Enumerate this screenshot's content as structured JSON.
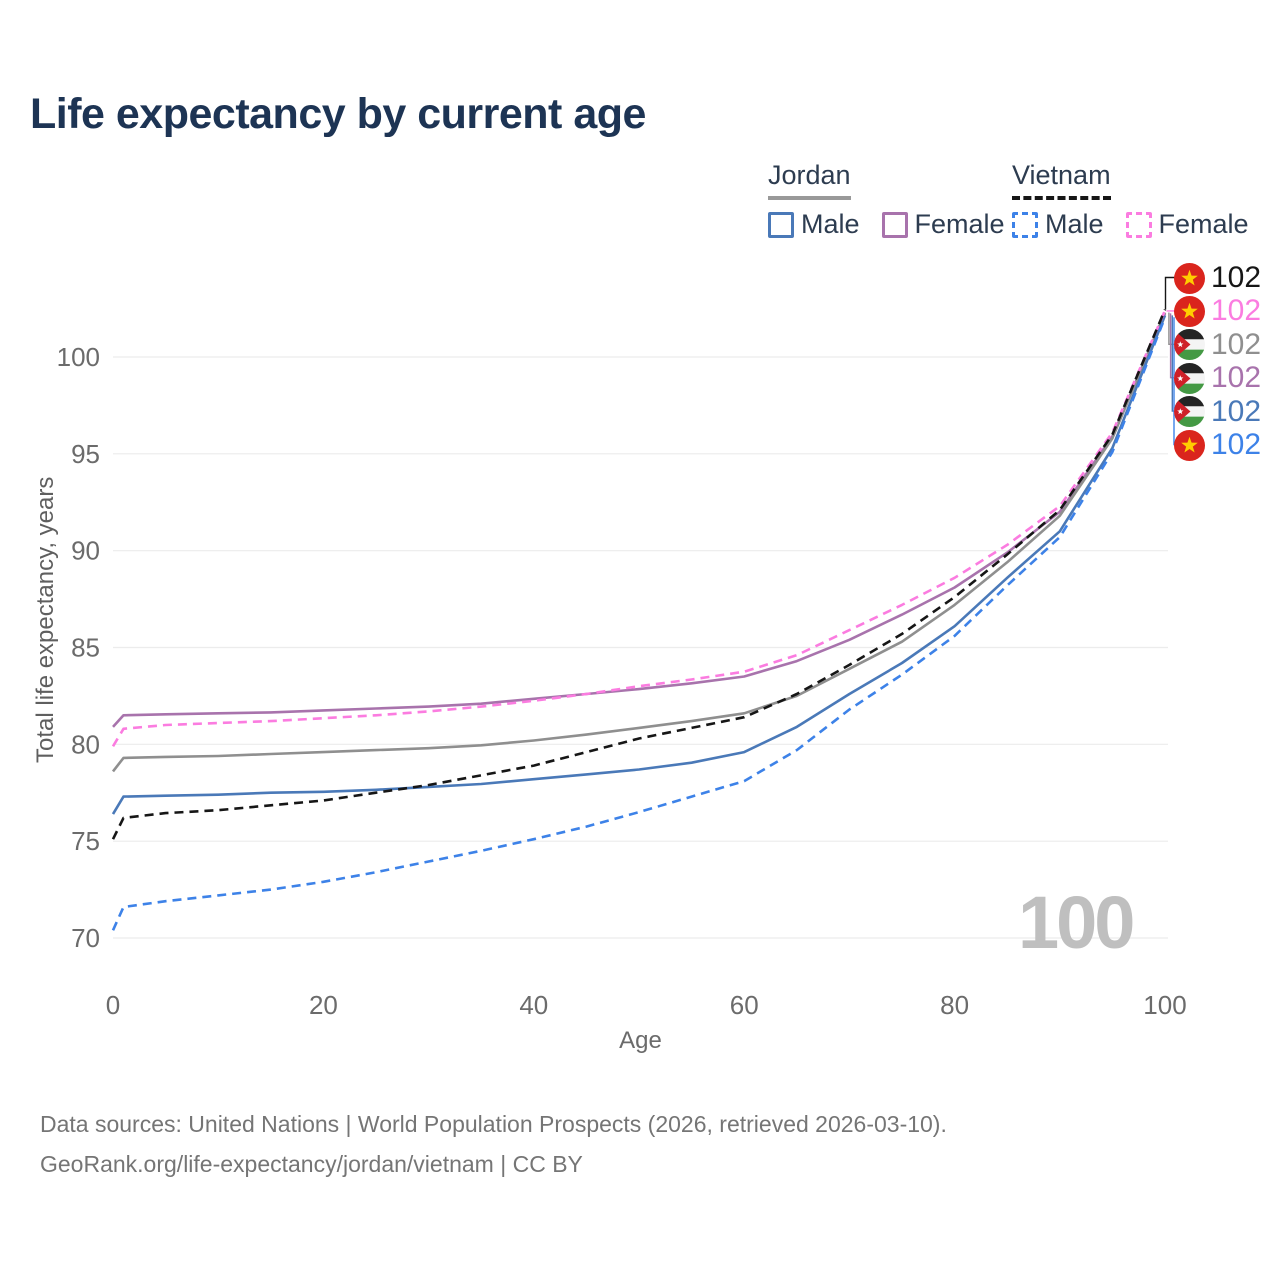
{
  "title": "Life expectancy by current age",
  "colors": {
    "title": "#1d3454",
    "grid": "#ececec",
    "tick_text": "#6b6b6b",
    "watermark": "#bfbfbf",
    "footer_text": "#757575",
    "jordan_male": "#4a79b8",
    "jordan_female": "#a873ac",
    "jordan_total": "#8f8f8f",
    "vietnam_male": "#3d82e8",
    "vietnam_female": "#fb7ce0",
    "vietnam_total": "#161616"
  },
  "legend": {
    "groups": [
      {
        "country": "Jordan",
        "line_style": "solid",
        "underline_color": "#999999",
        "items": [
          {
            "label": "Male",
            "color": "#4a79b8",
            "dashed": false
          },
          {
            "label": "Female",
            "color": "#a873ac",
            "dashed": false
          }
        ]
      },
      {
        "country": "Vietnam",
        "line_style": "dashed",
        "underline_color": "#161616",
        "items": [
          {
            "label": "Male",
            "color": "#3d82e8",
            "dashed": true
          },
          {
            "label": "Female",
            "color": "#fb7ce0",
            "dashed": true
          }
        ]
      }
    ]
  },
  "chart_data": {
    "type": "line",
    "title": "Life expectancy by current age",
    "xlabel": "Age",
    "ylabel": "Total life expectancy, years",
    "x_ticks": [
      0,
      20,
      40,
      60,
      80,
      100
    ],
    "y_ticks": [
      70,
      75,
      80,
      85,
      90,
      95,
      100
    ],
    "xlim": [
      0,
      100
    ],
    "ylim": [
      69.5,
      103
    ],
    "grid": "horizontal",
    "legend_position": "top-right",
    "x": [
      0,
      1,
      5,
      10,
      15,
      20,
      25,
      30,
      35,
      40,
      45,
      50,
      55,
      60,
      65,
      70,
      75,
      80,
      85,
      90,
      95,
      100
    ],
    "series": [
      {
        "id": "jordan_female",
        "name": "Jordan Female",
        "country": "Jordan",
        "sex": "Female",
        "color": "#a873ac",
        "dashed": false,
        "values": [
          80.9,
          81.5,
          81.55,
          81.6,
          81.65,
          81.75,
          81.85,
          81.95,
          82.1,
          82.35,
          82.6,
          82.85,
          83.15,
          83.5,
          84.3,
          85.4,
          86.7,
          88.1,
          89.9,
          92.0,
          95.9,
          102.25
        ]
      },
      {
        "id": "jordan_total",
        "name": "Jordan",
        "country": "Jordan",
        "sex": "Both",
        "color": "#8f8f8f",
        "dashed": false,
        "values": [
          78.6,
          79.3,
          79.35,
          79.4,
          79.5,
          79.6,
          79.7,
          79.8,
          79.95,
          80.2,
          80.5,
          80.85,
          81.2,
          81.6,
          82.5,
          83.9,
          85.3,
          87.2,
          89.4,
          91.8,
          95.8,
          102.3
        ]
      },
      {
        "id": "jordan_male",
        "name": "Jordan Male",
        "country": "Jordan",
        "sex": "Male",
        "color": "#4a79b8",
        "dashed": false,
        "values": [
          76.4,
          77.3,
          77.35,
          77.4,
          77.5,
          77.55,
          77.65,
          77.8,
          77.95,
          78.2,
          78.45,
          78.7,
          79.05,
          79.6,
          80.9,
          82.6,
          84.2,
          86.1,
          88.6,
          91.0,
          95.3,
          102.15
        ]
      },
      {
        "id": "vietnam_female",
        "name": "Vietnam Female",
        "country": "Vietnam",
        "sex": "Female",
        "color": "#fb7ce0",
        "dashed": true,
        "values": [
          79.9,
          80.8,
          81.0,
          81.1,
          81.2,
          81.35,
          81.5,
          81.7,
          81.95,
          82.25,
          82.6,
          83.0,
          83.35,
          83.75,
          84.6,
          85.9,
          87.2,
          88.6,
          90.3,
          92.3,
          96.1,
          102.4
        ]
      },
      {
        "id": "vietnam_total",
        "name": "Vietnam",
        "country": "Vietnam",
        "sex": "Both",
        "color": "#161616",
        "dashed": true,
        "values": [
          75.1,
          76.2,
          76.45,
          76.6,
          76.85,
          77.1,
          77.5,
          77.9,
          78.4,
          78.9,
          79.6,
          80.3,
          80.85,
          81.4,
          82.6,
          84.1,
          85.7,
          87.6,
          89.8,
          92.1,
          96.0,
          102.45
        ]
      },
      {
        "id": "vietnam_male",
        "name": "Vietnam Male",
        "country": "Vietnam",
        "sex": "Male",
        "color": "#3d82e8",
        "dashed": true,
        "values": [
          70.4,
          71.6,
          71.9,
          72.2,
          72.5,
          72.9,
          73.4,
          73.95,
          74.5,
          75.1,
          75.75,
          76.5,
          77.3,
          78.1,
          79.7,
          81.8,
          83.6,
          85.6,
          88.2,
          90.7,
          95.1,
          102.05
        ]
      }
    ]
  },
  "end_labels": [
    {
      "value": "102",
      "series": "vietnam_total",
      "country": "Vietnam",
      "flag": "vietnam",
      "color": "#161616"
    },
    {
      "value": "102",
      "series": "vietnam_female",
      "country": "Vietnam",
      "flag": "vietnam",
      "color": "#fb7ce0"
    },
    {
      "value": "102",
      "series": "jordan_total",
      "country": "Jordan",
      "flag": "jordan",
      "color": "#8f8f8f"
    },
    {
      "value": "102",
      "series": "jordan_female",
      "country": "Jordan",
      "flag": "jordan",
      "color": "#a873ac"
    },
    {
      "value": "102",
      "series": "jordan_male",
      "country": "Jordan",
      "flag": "jordan",
      "color": "#4a79b8"
    },
    {
      "value": "102",
      "series": "vietnam_male",
      "country": "Vietnam",
      "flag": "vietnam",
      "color": "#3d82e8"
    }
  ],
  "watermark": {
    "text": "100"
  },
  "footer": {
    "line1": "Data sources: United Nations | World Population Prospects (2026, retrieved 2026-03-10).",
    "line2": "GeoRank.org/life-expectancy/jordan/vietnam | CC BY"
  }
}
